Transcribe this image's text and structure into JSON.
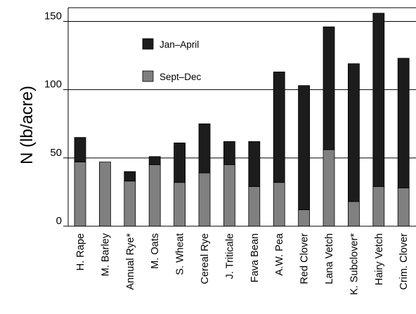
{
  "chart_data": {
    "type": "bar",
    "stacked": true,
    "title": "",
    "xlabel": "",
    "ylabel": "N (lb/acre)",
    "ylim": [
      0,
      160
    ],
    "yticks": [
      0,
      50,
      100,
      150
    ],
    "ytick_labels": [
      "0",
      "50",
      "100",
      "150"
    ],
    "grid": true,
    "legend_position": "top-left",
    "categories": [
      "H. Rape",
      "M. Barley",
      "Annual Rye*",
      "M. Oats",
      "S. Wheat",
      "Cereal Rye",
      "J. Triticale",
      "Fava Bean",
      "A.W. Pea",
      "Red Clover",
      "Lana Vetch",
      "K. Subclover*",
      "Hairy Vetch",
      "Crim. Clover"
    ],
    "series": [
      {
        "name": "Sept–Dec",
        "color": "#808080",
        "values": [
          47,
          47,
          33,
          45,
          32,
          39,
          45,
          29,
          32,
          12,
          56,
          18,
          29,
          28
        ]
      },
      {
        "name": "Jan–April",
        "color": "#1c1c1c",
        "values": [
          18,
          0,
          7,
          6,
          29,
          36,
          17,
          33,
          81,
          91,
          90,
          101,
          127,
          95
        ]
      }
    ],
    "legend": [
      {
        "label": "Jan–April",
        "color": "#1c1c1c"
      },
      {
        "label": "Sept–Dec",
        "color": "#808080"
      }
    ]
  }
}
